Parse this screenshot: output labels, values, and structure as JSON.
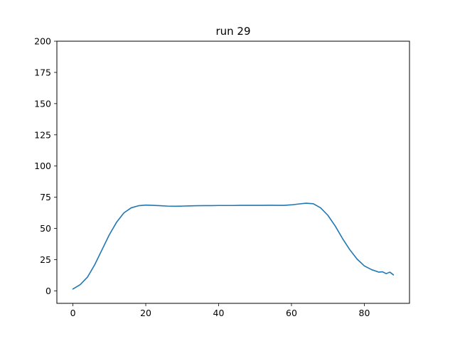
{
  "chart_data": {
    "type": "line",
    "title": "run 29",
    "xlabel": "",
    "ylabel": "",
    "xlim": [
      -4.4,
      92.4
    ],
    "ylim": [
      -10,
      200
    ],
    "xticks": [
      0,
      20,
      40,
      60,
      80
    ],
    "yticks": [
      0,
      25,
      50,
      75,
      100,
      125,
      150,
      175,
      200
    ],
    "grid": false,
    "legend": "none",
    "series": [
      {
        "color": "#1f77b4",
        "x": [
          0,
          2,
          4,
          6,
          8,
          10,
          12,
          14,
          16,
          18,
          20,
          22,
          24,
          26,
          28,
          30,
          32,
          34,
          36,
          38,
          40,
          42,
          44,
          46,
          48,
          50,
          52,
          54,
          56,
          58,
          60,
          62,
          64,
          66,
          68,
          70,
          72,
          74,
          76,
          78,
          80,
          82,
          84,
          85,
          86,
          87,
          88
        ],
        "y": [
          1.5,
          5,
          11,
          21,
          33,
          45,
          55,
          62.5,
          66.5,
          68.2,
          68.7,
          68.5,
          68.2,
          67.9,
          67.8,
          67.9,
          68.1,
          68.2,
          68.3,
          68.3,
          68.4,
          68.4,
          68.4,
          68.5,
          68.5,
          68.5,
          68.5,
          68.6,
          68.5,
          68.5,
          68.9,
          69.6,
          70.2,
          69.8,
          66.5,
          60.5,
          52,
          42,
          33,
          25.5,
          20,
          17,
          15,
          15.3,
          13.8,
          15,
          12.8
        ]
      }
    ]
  }
}
